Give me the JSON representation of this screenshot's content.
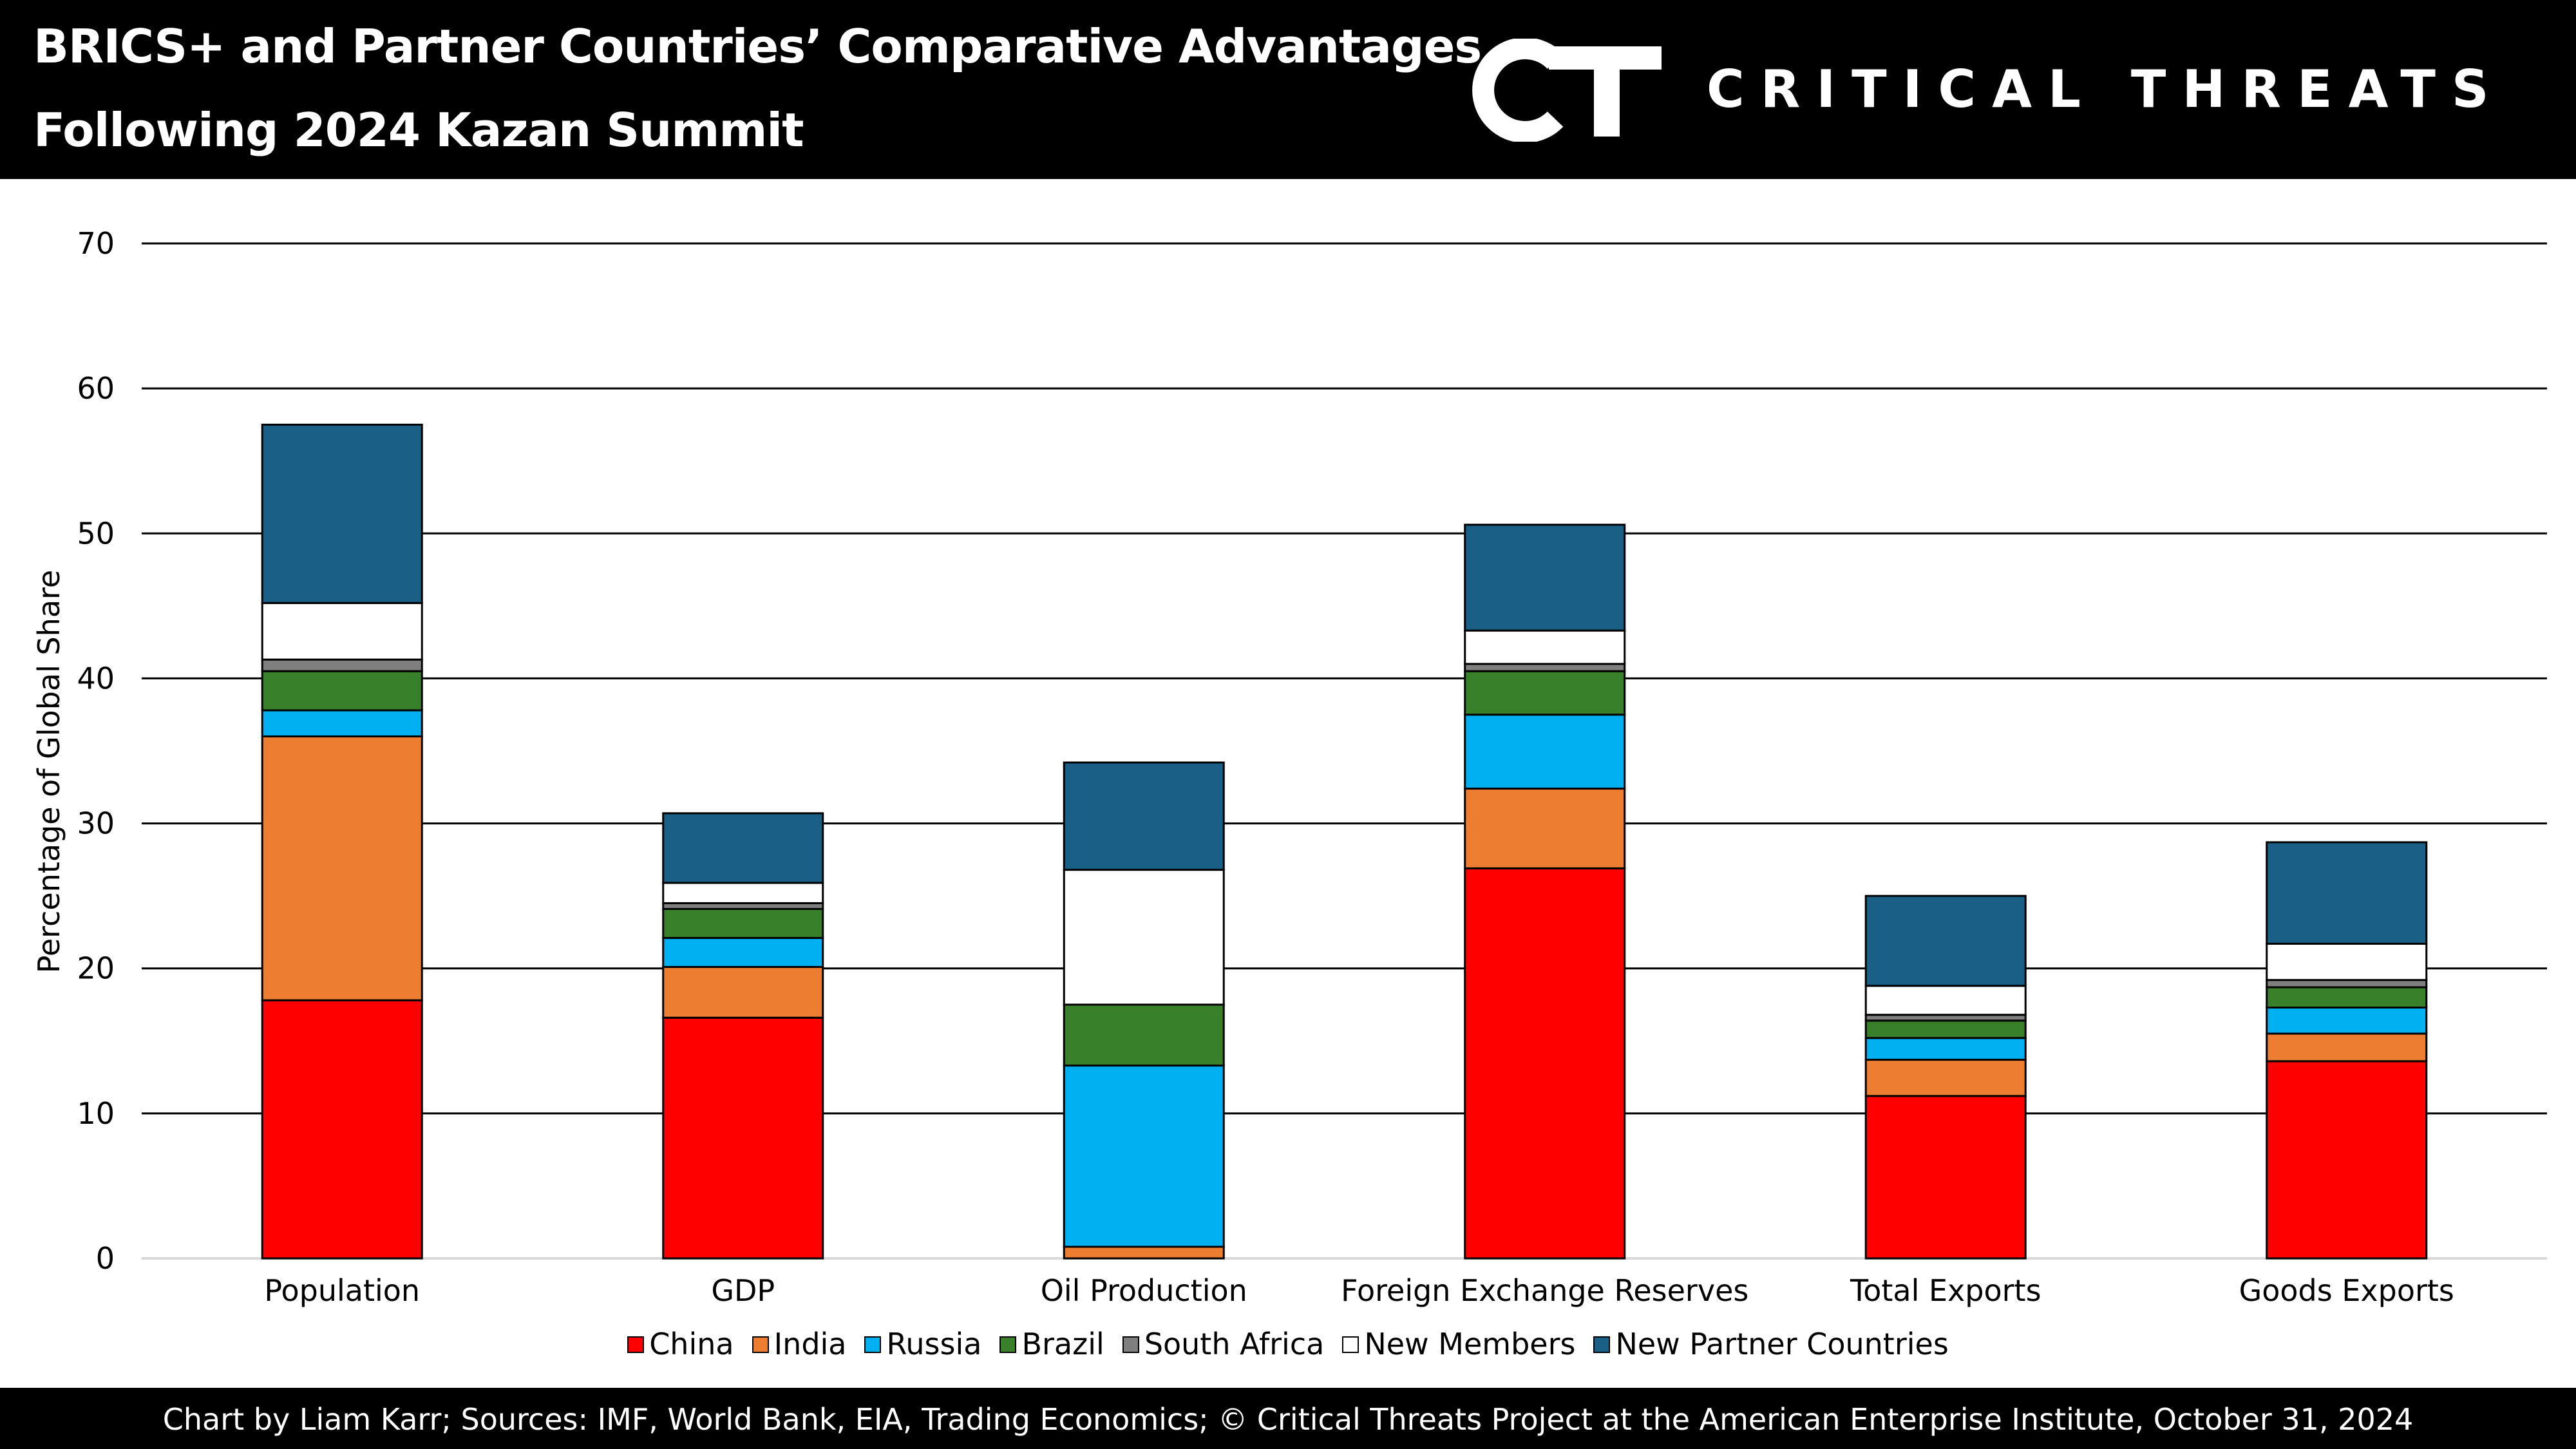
{
  "header": {
    "title_line1": "BRICS+ and Partner Countries’ Comparative Advantages",
    "title_line2": "Following 2024 Kazan Summit",
    "brand": "CRITICAL THREATS",
    "logo_icon": "ct-logo-icon"
  },
  "footer": {
    "source": "Chart by Liam Karr; Sources: IMF, World Bank, EIA, Trading Economics; © Critical Threats Project at the American Enterprise Institute, October 31, 2024"
  },
  "chart_data": {
    "type": "bar",
    "stacked": true,
    "title": "BRICS+ and Partner Countries’ Comparative Advantages Following 2024 Kazan Summit",
    "xlabel": "",
    "ylabel": "Percentage of Global Share",
    "ylim": [
      0,
      70
    ],
    "yticks": [
      0,
      10,
      20,
      30,
      40,
      50,
      60,
      70
    ],
    "grid": true,
    "legend_position": "bottom",
    "categories": [
      "Population",
      "GDP",
      "Oil Production",
      "Foreign Exchange Reserves",
      "Total Exports",
      "Goods Exports"
    ],
    "series": [
      {
        "name": "China",
        "color": "#ff0000",
        "values": [
          17.8,
          16.6,
          0,
          26.9,
          11.2,
          13.6
        ]
      },
      {
        "name": "India",
        "color": "#ed7d31",
        "values": [
          18.2,
          3.5,
          0.8,
          5.5,
          2.5,
          1.9
        ]
      },
      {
        "name": "Russia",
        "color": "#00b0f0",
        "values": [
          1.8,
          2.0,
          12.5,
          5.1,
          1.5,
          1.8
        ]
      },
      {
        "name": "Brazil",
        "color": "#38802a",
        "values": [
          2.7,
          2.0,
          4.2,
          3.0,
          1.2,
          1.4
        ]
      },
      {
        "name": "South Africa",
        "color": "#7f7f7f",
        "values": [
          0.8,
          0.4,
          0,
          0.5,
          0.4,
          0.5
        ]
      },
      {
        "name": "New Members",
        "color": "#ffffff",
        "values": [
          3.9,
          1.4,
          9.3,
          2.3,
          2.0,
          2.5
        ]
      },
      {
        "name": "New Partner Countries",
        "color": "#1a5f86",
        "values": [
          12.3,
          4.8,
          7.4,
          7.3,
          6.2,
          7.0
        ]
      }
    ]
  }
}
